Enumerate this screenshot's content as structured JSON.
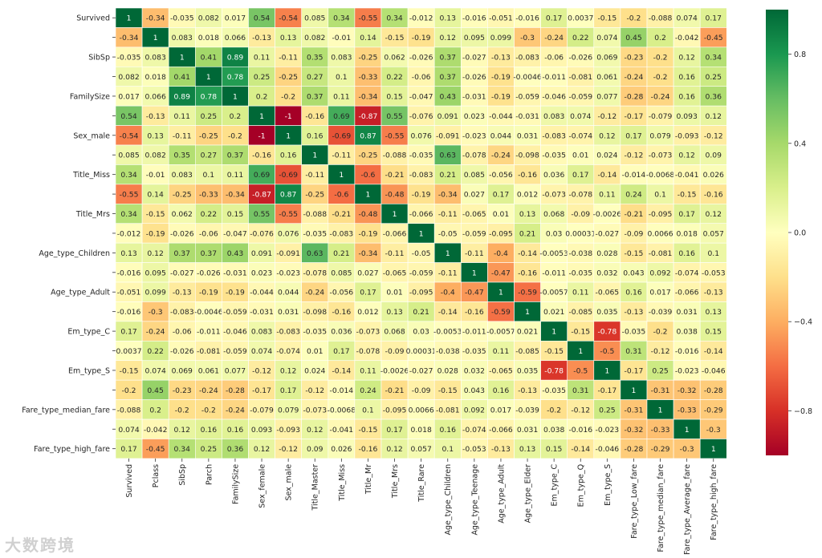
{
  "chart_data": {
    "type": "heatmap",
    "title": "",
    "xlabel": "",
    "ylabel": "",
    "x_labels": [
      "Survived",
      "Pclass",
      "SibSp",
      "Parch",
      "FamilySize",
      "Sex_female",
      "Sex_male",
      "Title_Master",
      "Title_Miss",
      "Title_Mr",
      "Title_Mrs",
      "Title_Rare",
      "Age_type_Children",
      "Age_type_Teenage",
      "Age_type_Adult",
      "Age_type_Elder",
      "Em_type_C",
      "Em_type_Q",
      "Em_type_S",
      "Fare_type_Low_fare",
      "Fare_type_median_fare",
      "Fare_type_Average_fare",
      "Fare_type_high_fare"
    ],
    "y_labels": [
      "Survived",
      "",
      "SibSp",
      "",
      "FamilySize",
      "",
      "Sex_male",
      "",
      "Title_Miss",
      "",
      "Title_Mrs",
      "",
      "Age_type_Children",
      "",
      "Age_type_Adult",
      "",
      "Em_type_C",
      "",
      "Em_type_S",
      "",
      "Fare_type_median_fare",
      "",
      "Fare_type_high_fare"
    ],
    "values": [
      [
        "1",
        "-0.34",
        "-0.035",
        "0.082",
        "0.017",
        "0.54",
        "-0.54",
        "0.085",
        "0.34",
        "-0.55",
        "0.34",
        "-0.012",
        "0.13",
        "-0.016",
        "-0.051",
        "-0.016",
        "0.17",
        "0.0037",
        "-0.15",
        "-0.2",
        "-0.088",
        "0.074",
        "0.17"
      ],
      [
        "-0.34",
        "1",
        "0.083",
        "0.018",
        "0.066",
        "-0.13",
        "0.13",
        "0.082",
        "-0.01",
        "0.14",
        "-0.15",
        "-0.19",
        "0.12",
        "0.095",
        "0.099",
        "-0.3",
        "-0.24",
        "0.22",
        "0.074",
        "0.45",
        "0.2",
        "-0.042",
        "-0.45"
      ],
      [
        "-0.035",
        "0.083",
        "1",
        "0.41",
        "0.89",
        "0.11",
        "-0.11",
        "0.35",
        "0.083",
        "-0.25",
        "0.062",
        "-0.026",
        "0.37",
        "-0.027",
        "-0.13",
        "-0.083",
        "-0.06",
        "-0.026",
        "0.069",
        "-0.23",
        "-0.2",
        "0.12",
        "0.34"
      ],
      [
        "0.082",
        "0.018",
        "0.41",
        "1",
        "0.78",
        "0.25",
        "-0.25",
        "0.27",
        "0.1",
        "-0.33",
        "0.22",
        "-0.06",
        "0.37",
        "-0.026",
        "-0.19",
        "-0.0046",
        "-0.011",
        "-0.081",
        "0.061",
        "-0.24",
        "-0.2",
        "0.16",
        "0.25"
      ],
      [
        "0.017",
        "0.066",
        "0.89",
        "0.78",
        "1",
        "0.2",
        "-0.2",
        "0.37",
        "0.11",
        "-0.34",
        "0.15",
        "-0.047",
        "0.43",
        "-0.031",
        "-0.19",
        "-0.059",
        "-0.046",
        "-0.059",
        "0.077",
        "-0.28",
        "-0.24",
        "0.16",
        "0.36"
      ],
      [
        "0.54",
        "-0.13",
        "0.11",
        "0.25",
        "0.2",
        "1",
        "-1",
        "-0.16",
        "0.69",
        "-0.87",
        "0.55",
        "-0.076",
        "0.091",
        "0.023",
        "-0.044",
        "-0.031",
        "0.083",
        "0.074",
        "-0.12",
        "-0.17",
        "-0.079",
        "0.093",
        "0.12"
      ],
      [
        "-0.54",
        "0.13",
        "-0.11",
        "-0.25",
        "-0.2",
        "-1",
        "1",
        "0.16",
        "-0.69",
        "0.87",
        "-0.55",
        "0.076",
        "-0.091",
        "-0.023",
        "0.044",
        "0.031",
        "-0.083",
        "-0.074",
        "0.12",
        "0.17",
        "0.079",
        "-0.093",
        "-0.12"
      ],
      [
        "0.085",
        "0.082",
        "0.35",
        "0.27",
        "0.37",
        "-0.16",
        "0.16",
        "1",
        "-0.11",
        "-0.25",
        "-0.088",
        "-0.035",
        "0.63",
        "-0.078",
        "-0.24",
        "-0.098",
        "-0.035",
        "0.01",
        "0.024",
        "-0.12",
        "-0.073",
        "0.12",
        "0.09"
      ],
      [
        "0.34",
        "-0.01",
        "0.083",
        "0.1",
        "0.11",
        "0.69",
        "-0.69",
        "-0.11",
        "1",
        "-0.6",
        "-0.21",
        "-0.083",
        "0.21",
        "0.085",
        "-0.056",
        "-0.16",
        "0.036",
        "0.17",
        "-0.14",
        "-0.014",
        "-0.0068",
        "-0.041",
        "0.026"
      ],
      [
        "-0.55",
        "0.14",
        "-0.25",
        "-0.33",
        "-0.34",
        "-0.87",
        "0.87",
        "-0.25",
        "-0.6",
        "1",
        "-0.48",
        "-0.19",
        "-0.34",
        "0.027",
        "0.17",
        "0.012",
        "-0.073",
        "-0.078",
        "0.11",
        "0.24",
        "0.1",
        "-0.15",
        "-0.16"
      ],
      [
        "0.34",
        "-0.15",
        "0.062",
        "0.22",
        "0.15",
        "0.55",
        "-0.55",
        "-0.088",
        "-0.21",
        "-0.48",
        "1",
        "-0.066",
        "-0.11",
        "-0.065",
        "0.01",
        "0.13",
        "0.068",
        "-0.09",
        "-0.0026",
        "-0.21",
        "-0.095",
        "0.17",
        "0.12"
      ],
      [
        "-0.012",
        "-0.19",
        "-0.026",
        "-0.06",
        "-0.047",
        "-0.076",
        "0.076",
        "-0.035",
        "-0.083",
        "-0.19",
        "-0.066",
        "1",
        "-0.05",
        "-0.059",
        "-0.095",
        "0.21",
        "0.03",
        "0.00031",
        "-0.027",
        "-0.09",
        "0.0066",
        "0.018",
        "0.057"
      ],
      [
        "0.13",
        "0.12",
        "0.37",
        "0.37",
        "0.43",
        "0.091",
        "-0.091",
        "0.63",
        "0.21",
        "-0.34",
        "-0.11",
        "-0.05",
        "1",
        "-0.11",
        "-0.4",
        "-0.14",
        "-0.0053",
        "-0.038",
        "0.028",
        "-0.15",
        "-0.081",
        "0.16",
        "0.1"
      ],
      [
        "-0.016",
        "0.095",
        "-0.027",
        "-0.026",
        "-0.031",
        "0.023",
        "-0.023",
        "-0.078",
        "0.085",
        "0.027",
        "-0.065",
        "-0.059",
        "-0.11",
        "1",
        "-0.47",
        "-0.16",
        "-0.011",
        "-0.035",
        "0.032",
        "0.043",
        "0.092",
        "-0.074",
        "-0.053"
      ],
      [
        "-0.051",
        "0.099",
        "-0.13",
        "-0.19",
        "-0.19",
        "-0.044",
        "0.044",
        "-0.24",
        "-0.056",
        "0.17",
        "0.01",
        "-0.095",
        "-0.4",
        "-0.47",
        "1",
        "-0.59",
        "-0.0057",
        "0.11",
        "-0.065",
        "0.16",
        "0.017",
        "-0.066",
        "-0.13"
      ],
      [
        "-0.016",
        "-0.3",
        "-0.083",
        "-0.0046",
        "-0.059",
        "-0.031",
        "0.031",
        "-0.098",
        "-0.16",
        "0.012",
        "0.13",
        "0.21",
        "-0.14",
        "-0.16",
        "-0.59",
        "1",
        "0.021",
        "-0.085",
        "0.035",
        "-0.13",
        "-0.039",
        "0.031",
        "0.13"
      ],
      [
        "0.17",
        "-0.24",
        "-0.06",
        "-0.011",
        "-0.046",
        "0.083",
        "-0.083",
        "-0.035",
        "0.036",
        "-0.073",
        "0.068",
        "0.03",
        "-0.0053",
        "-0.011",
        "-0.0057",
        "0.021",
        "1",
        "-0.15",
        "-0.78",
        "-0.035",
        "-0.2",
        "0.038",
        "0.15"
      ],
      [
        "0.0037",
        "0.22",
        "-0.026",
        "-0.081",
        "-0.059",
        "0.074",
        "-0.074",
        "0.01",
        "0.17",
        "-0.078",
        "-0.09",
        "0.00031",
        "-0.038",
        "-0.035",
        "0.11",
        "-0.085",
        "-0.15",
        "1",
        "-0.5",
        "0.31",
        "-0.12",
        "-0.016",
        "-0.14"
      ],
      [
        "-0.15",
        "0.074",
        "0.069",
        "0.061",
        "0.077",
        "-0.12",
        "0.12",
        "0.024",
        "-0.14",
        "0.11",
        "-0.0026",
        "-0.027",
        "0.028",
        "0.032",
        "-0.065",
        "0.035",
        "-0.78",
        "-0.5",
        "1",
        "-0.17",
        "0.25",
        "-0.023",
        "-0.046"
      ],
      [
        "-0.2",
        "0.45",
        "-0.23",
        "-0.24",
        "-0.28",
        "-0.17",
        "0.17",
        "-0.12",
        "-0.014",
        "0.24",
        "-0.21",
        "-0.09",
        "-0.15",
        "0.043",
        "0.16",
        "-0.13",
        "-0.035",
        "0.31",
        "-0.17",
        "1",
        "-0.31",
        "-0.32",
        "-0.28"
      ],
      [
        "-0.088",
        "0.2",
        "-0.2",
        "-0.2",
        "-0.24",
        "-0.079",
        "0.079",
        "-0.073",
        "-0.0068",
        "0.1",
        "-0.095",
        "0.0066",
        "-0.081",
        "0.092",
        "0.017",
        "-0.039",
        "-0.2",
        "-0.12",
        "0.25",
        "-0.31",
        "1",
        "-0.33",
        "-0.29"
      ],
      [
        "0.074",
        "-0.042",
        "0.12",
        "0.16",
        "0.16",
        "0.093",
        "-0.093",
        "0.12",
        "-0.041",
        "-0.15",
        "0.17",
        "0.018",
        "0.16",
        "-0.074",
        "-0.066",
        "0.031",
        "0.038",
        "-0.016",
        "-0.023",
        "-0.32",
        "-0.33",
        "1",
        "-0.3"
      ],
      [
        "0.17",
        "-0.45",
        "0.34",
        "0.25",
        "0.36",
        "0.12",
        "-0.12",
        "0.09",
        "0.026",
        "-0.16",
        "0.12",
        "0.057",
        "0.1",
        "-0.053",
        "-0.13",
        "0.13",
        "0.15",
        "-0.14",
        "-0.046",
        "-0.28",
        "-0.29",
        "-0.3",
        "1"
      ]
    ],
    "vmin": -1,
    "vmax": 1,
    "colormap": [
      "#a50026",
      "#d73027",
      "#f46d43",
      "#fdae61",
      "#fee08b",
      "#ffffbf",
      "#d9ef8b",
      "#a6d96a",
      "#66bd63",
      "#1a9850",
      "#006837"
    ],
    "colorbar_ticks": [
      0.8,
      0.4,
      0.0,
      -0.4,
      -0.8
    ],
    "colorbar_tick_labels": [
      "0.8",
      "0.4",
      "0.0",
      "−0.4",
      "−0.8"
    ],
    "grid": false,
    "legend": "right"
  },
  "watermark_text": "大数跨境"
}
